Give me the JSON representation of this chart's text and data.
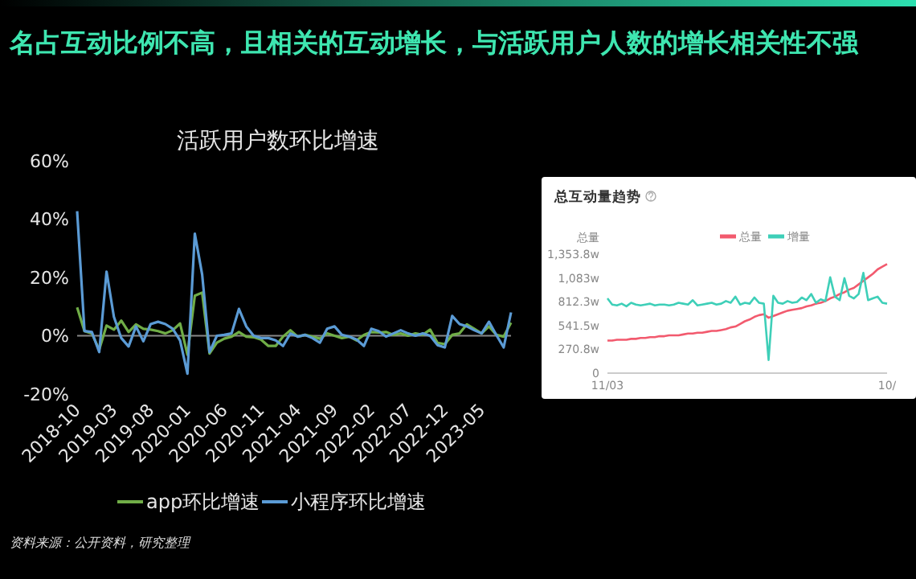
{
  "chart_data": [
    {
      "type": "line",
      "title": "活跃用户数环比增速",
      "annotations": [
        "名占互动比例不高，且相关的互动增长，与活跃用户人数的增长相关性不强",
        "资料来源：公开资料，研究整理"
      ],
      "categories": [
        "2018-10",
        null,
        null,
        null,
        null,
        "2019-03",
        null,
        null,
        null,
        null,
        "2019-08",
        null,
        null,
        null,
        null,
        "2020-01",
        null,
        null,
        null,
        null,
        "2020-06",
        null,
        null,
        null,
        null,
        "2020-11",
        null,
        null,
        null,
        null,
        "2021-04",
        null,
        null,
        null,
        null,
        "2021-09",
        null,
        null,
        null,
        null,
        "2022-02",
        null,
        null,
        null,
        null,
        "2022-07",
        null,
        null,
        null,
        null,
        "2022-12",
        null,
        null,
        null,
        null,
        "2023-05",
        null,
        null,
        null,
        null
      ],
      "series": [
        {
          "name": "app环比增速",
          "color": "#70ad47",
          "values": [
            9.7,
            1.6,
            0.8,
            -4.8,
            3.5,
            2.1,
            5.2,
            1.3,
            3.9,
            2.4,
            2.1,
            1.6,
            0.8,
            1.9,
            4.2,
            -6.5,
            13.7,
            14.8,
            -6.1,
            -2.4,
            -1,
            -0.3,
            1.3,
            -0.3,
            -0.5,
            -1.3,
            -3.5,
            -3.5,
            -0.3,
            1.9,
            -0.3,
            0.3,
            -0.3,
            -1,
            0.8,
            0,
            -0.8,
            -0.3,
            -1.6,
            0.3,
            1.3,
            1.1,
            1.3,
            0.3,
            0.8,
            0,
            0.8,
            0.3,
            2.1,
            -2.4,
            -2.9,
            0.3,
            0.8,
            3.9,
            2.4,
            0.8,
            3.2,
            0.3,
            -0.3,
            4.5
          ]
        },
        {
          "name": "小程序环比增速",
          "color": "#5b9bd5",
          "values": [
            42.7,
            1.6,
            1.3,
            -5.6,
            22,
            6.5,
            -0.8,
            -3.7,
            3.2,
            -1.9,
            4,
            4.8,
            4,
            2.4,
            -1.6,
            -13,
            35,
            21,
            -5.6,
            0,
            0.3,
            0.8,
            9.2,
            3.2,
            0,
            -0.8,
            -0.8,
            -1.6,
            -3.5,
            0.8,
            -0.3,
            0.3,
            -0.8,
            -2.4,
            2.4,
            3.2,
            0.3,
            -0.3,
            -1.3,
            -3.5,
            2.4,
            1.6,
            -0.3,
            0.8,
            1.9,
            0.8,
            0,
            0.8,
            0,
            -3.2,
            -4,
            6.8,
            4,
            3.2,
            1.9,
            0.8,
            4.8,
            0.3,
            -4,
            8
          ]
        }
      ],
      "ylim": [
        -20,
        60
      ],
      "yticks": [
        {
          "value": -20,
          "label": "-20%"
        },
        {
          "value": 0,
          "label": "0%"
        },
        {
          "value": 20,
          "label": "20%"
        },
        {
          "value": 40,
          "label": "40%"
        },
        {
          "value": 60,
          "label": "60%"
        }
      ],
      "legend": "bottom"
    },
    {
      "type": "line",
      "title": "总互动量趋势",
      "ylabel": "总量",
      "categories": [
        "11/03",
        null,
        null,
        null,
        null,
        null,
        null,
        null,
        null,
        null,
        null,
        null,
        null,
        null,
        null,
        null,
        null,
        null,
        null,
        null,
        null,
        null,
        null,
        null,
        null,
        null,
        null,
        null,
        null,
        null,
        null,
        null,
        null,
        null,
        null,
        null,
        null,
        null,
        null,
        null,
        null,
        null,
        null,
        null,
        null,
        null,
        null,
        null,
        null,
        null,
        null,
        null,
        null,
        null,
        null,
        null,
        null,
        null,
        null,
        "10/"
      ],
      "series": [
        {
          "name": "总量",
          "color": "#f25a6e",
          "values": [
            370,
            370,
            380,
            380,
            380,
            390,
            390,
            400,
            400,
            410,
            410,
            420,
            420,
            430,
            430,
            430,
            440,
            450,
            450,
            460,
            460,
            470,
            480,
            480,
            490,
            500,
            520,
            530,
            560,
            590,
            610,
            640,
            660,
            670,
            630,
            650,
            670,
            690,
            710,
            720,
            730,
            740,
            760,
            770,
            790,
            800,
            820,
            850,
            870,
            900,
            920,
            950,
            970,
            1010,
            1050,
            1090,
            1130,
            1180,
            1210,
            1240
          ]
        },
        {
          "name": "增量",
          "color": "#3ecfb8",
          "values": [
            850,
            780,
            770,
            790,
            760,
            800,
            780,
            770,
            780,
            790,
            770,
            780,
            780,
            770,
            780,
            800,
            790,
            780,
            830,
            770,
            780,
            790,
            800,
            780,
            790,
            820,
            800,
            870,
            780,
            800,
            790,
            860,
            800,
            790,
            150,
            880,
            800,
            790,
            820,
            800,
            810,
            860,
            830,
            900,
            800,
            840,
            820,
            1090,
            870,
            830,
            1080,
            880,
            850,
            900,
            1140,
            830,
            850,
            870,
            800,
            790
          ]
        }
      ],
      "ylim": [
        0,
        1353.8
      ],
      "yticks": [
        0,
        {
          "value": 270.8,
          "label": "270.8w"
        },
        {
          "value": 541.5,
          "label": "541.5w"
        },
        {
          "value": 812.3,
          "label": "812.3w"
        },
        {
          "value": 1083,
          "label": "1,083w"
        },
        {
          "value": 1353.8,
          "label": "1,353.8w"
        }
      ],
      "legend": "top"
    }
  ]
}
